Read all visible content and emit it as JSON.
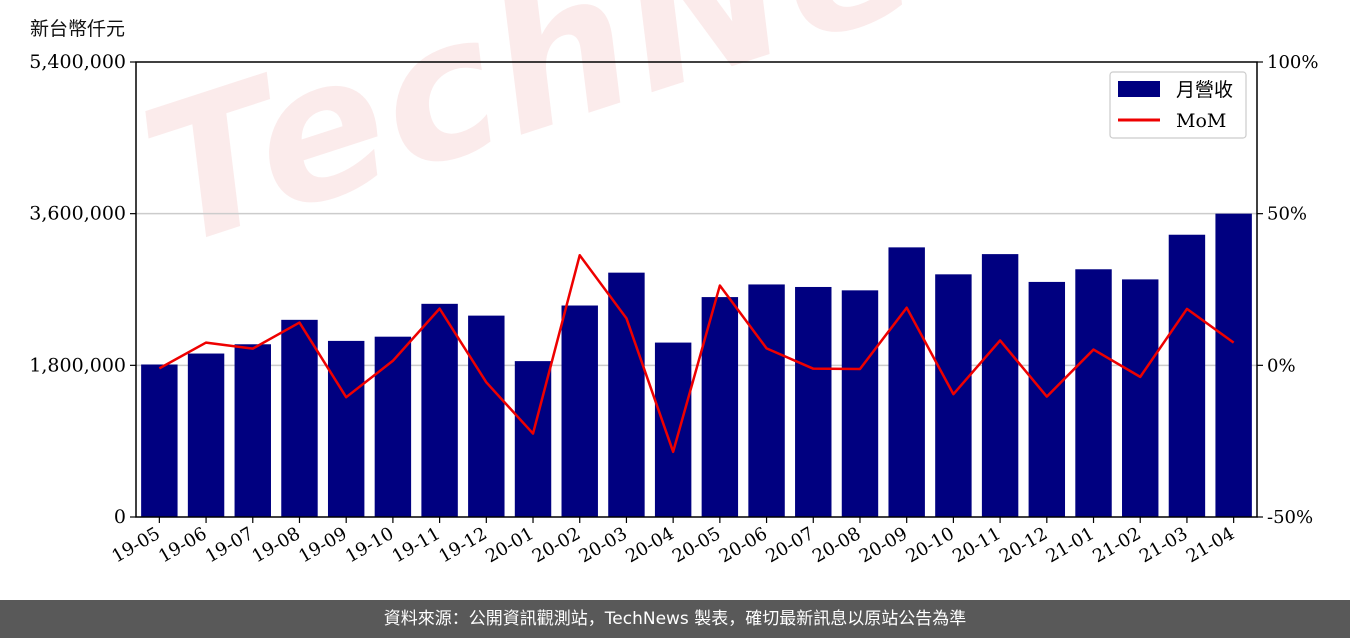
{
  "unit_label": "新台幣仟元",
  "watermark": "TechNews",
  "footer": "資料來源：公開資訊觀測站，TechNews 製表，確切最新訊息以原站公告為準",
  "colors": {
    "bar": "#000080",
    "line": "#ee0000",
    "grid": "#cccccc",
    "footer_bg": "#595959"
  },
  "chart_data": {
    "type": "bar",
    "categories": [
      "19-05",
      "19-06",
      "19-07",
      "19-08",
      "19-09",
      "19-10",
      "19-11",
      "19-12",
      "20-01",
      "20-02",
      "20-03",
      "20-04",
      "20-05",
      "20-06",
      "20-07",
      "20-08",
      "20-09",
      "20-10",
      "20-11",
      "20-12",
      "21-01",
      "21-02",
      "21-03",
      "21-04"
    ],
    "series": [
      {
        "name": "月營收",
        "type": "bar",
        "axis": "left",
        "values": [
          1810000,
          1940000,
          2050000,
          2340000,
          2090000,
          2140000,
          2530000,
          2390000,
          1850000,
          2510000,
          2900000,
          2070000,
          2610000,
          2760000,
          2730000,
          2690000,
          3200000,
          2880000,
          3120000,
          2790000,
          2940000,
          2820000,
          3350000,
          3600000
        ]
      },
      {
        "name": "MoM",
        "type": "line",
        "axis": "right",
        "values": [
          -1,
          7.5,
          5.5,
          14.1,
          -10.5,
          1.5,
          18.7,
          -5.6,
          -22.5,
          36.3,
          15.5,
          -28.5,
          26.3,
          5.6,
          -1.1,
          -1.2,
          19,
          -9.5,
          8.2,
          -10.3,
          5.2,
          -3.8,
          18.6,
          7.5
        ]
      }
    ],
    "y_left": {
      "min": 0,
      "max": 5400000,
      "ticks": [
        0,
        1800000,
        3600000,
        5400000
      ],
      "tick_labels": [
        "0",
        "1,800,000",
        "3,600,000",
        "5,400,000"
      ]
    },
    "y_right": {
      "min": -50,
      "max": 100,
      "ticks": [
        -50,
        0,
        50,
        100
      ],
      "tick_labels": [
        "-50%",
        "0%",
        "50%",
        "100%"
      ]
    },
    "grid": "horizontal",
    "legend": "top-right"
  }
}
